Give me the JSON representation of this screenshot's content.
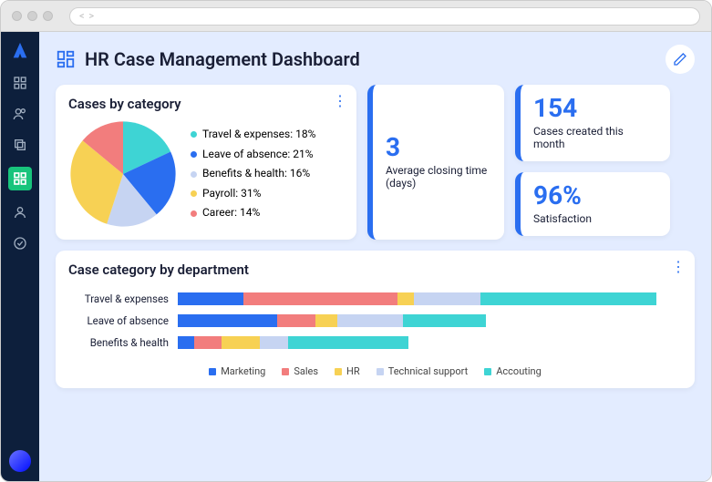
{
  "header": {
    "title": "HR Case Management Dashboard"
  },
  "colors": {
    "accent": "#2a6ef0",
    "sidebar_bg": "#0d1f3c",
    "page_bg": "#e3ecff",
    "card_bg": "#ffffff"
  },
  "pie_card": {
    "title": "Cases by category",
    "type": "pie",
    "slices": [
      {
        "label": "Travel & expenses",
        "pct": 18,
        "color": "#3ed4d4"
      },
      {
        "label": "Leave of absence",
        "pct": 21,
        "color": "#2a6ef0"
      },
      {
        "label": "Benefits & health",
        "pct": 16,
        "color": "#c6d4f2"
      },
      {
        "label": "Payroll",
        "pct": 31,
        "color": "#f7d154"
      },
      {
        "label": "Career",
        "pct": 14,
        "color": "#f27d7d"
      }
    ]
  },
  "stat_avg": {
    "value": "3",
    "label": "Average closing time (days)"
  },
  "stat_cases": {
    "value": "154",
    "label": "Cases created this month"
  },
  "stat_sat": {
    "value": "96%",
    "label": "Satisfaction"
  },
  "bar_card": {
    "title": "Case category by department",
    "type": "stacked-bar-horizontal",
    "series": [
      {
        "label": "Marketing",
        "color": "#2a6ef0"
      },
      {
        "label": "Sales",
        "color": "#f27d7d"
      },
      {
        "label": "HR",
        "color": "#f7d154"
      },
      {
        "label": "Technical support",
        "color": "#c6d4f2"
      },
      {
        "label": "Accouting",
        "color": "#3ed4d4"
      }
    ],
    "rows": [
      {
        "label": "Travel & expenses",
        "values": [
          12,
          28,
          3,
          12,
          32
        ]
      },
      {
        "label": "Leave of absence",
        "values": [
          18,
          7,
          4,
          12,
          15
        ]
      },
      {
        "label": "Benefits & health",
        "values": [
          3,
          5,
          7,
          5,
          22
        ]
      }
    ],
    "max_total": 90
  }
}
